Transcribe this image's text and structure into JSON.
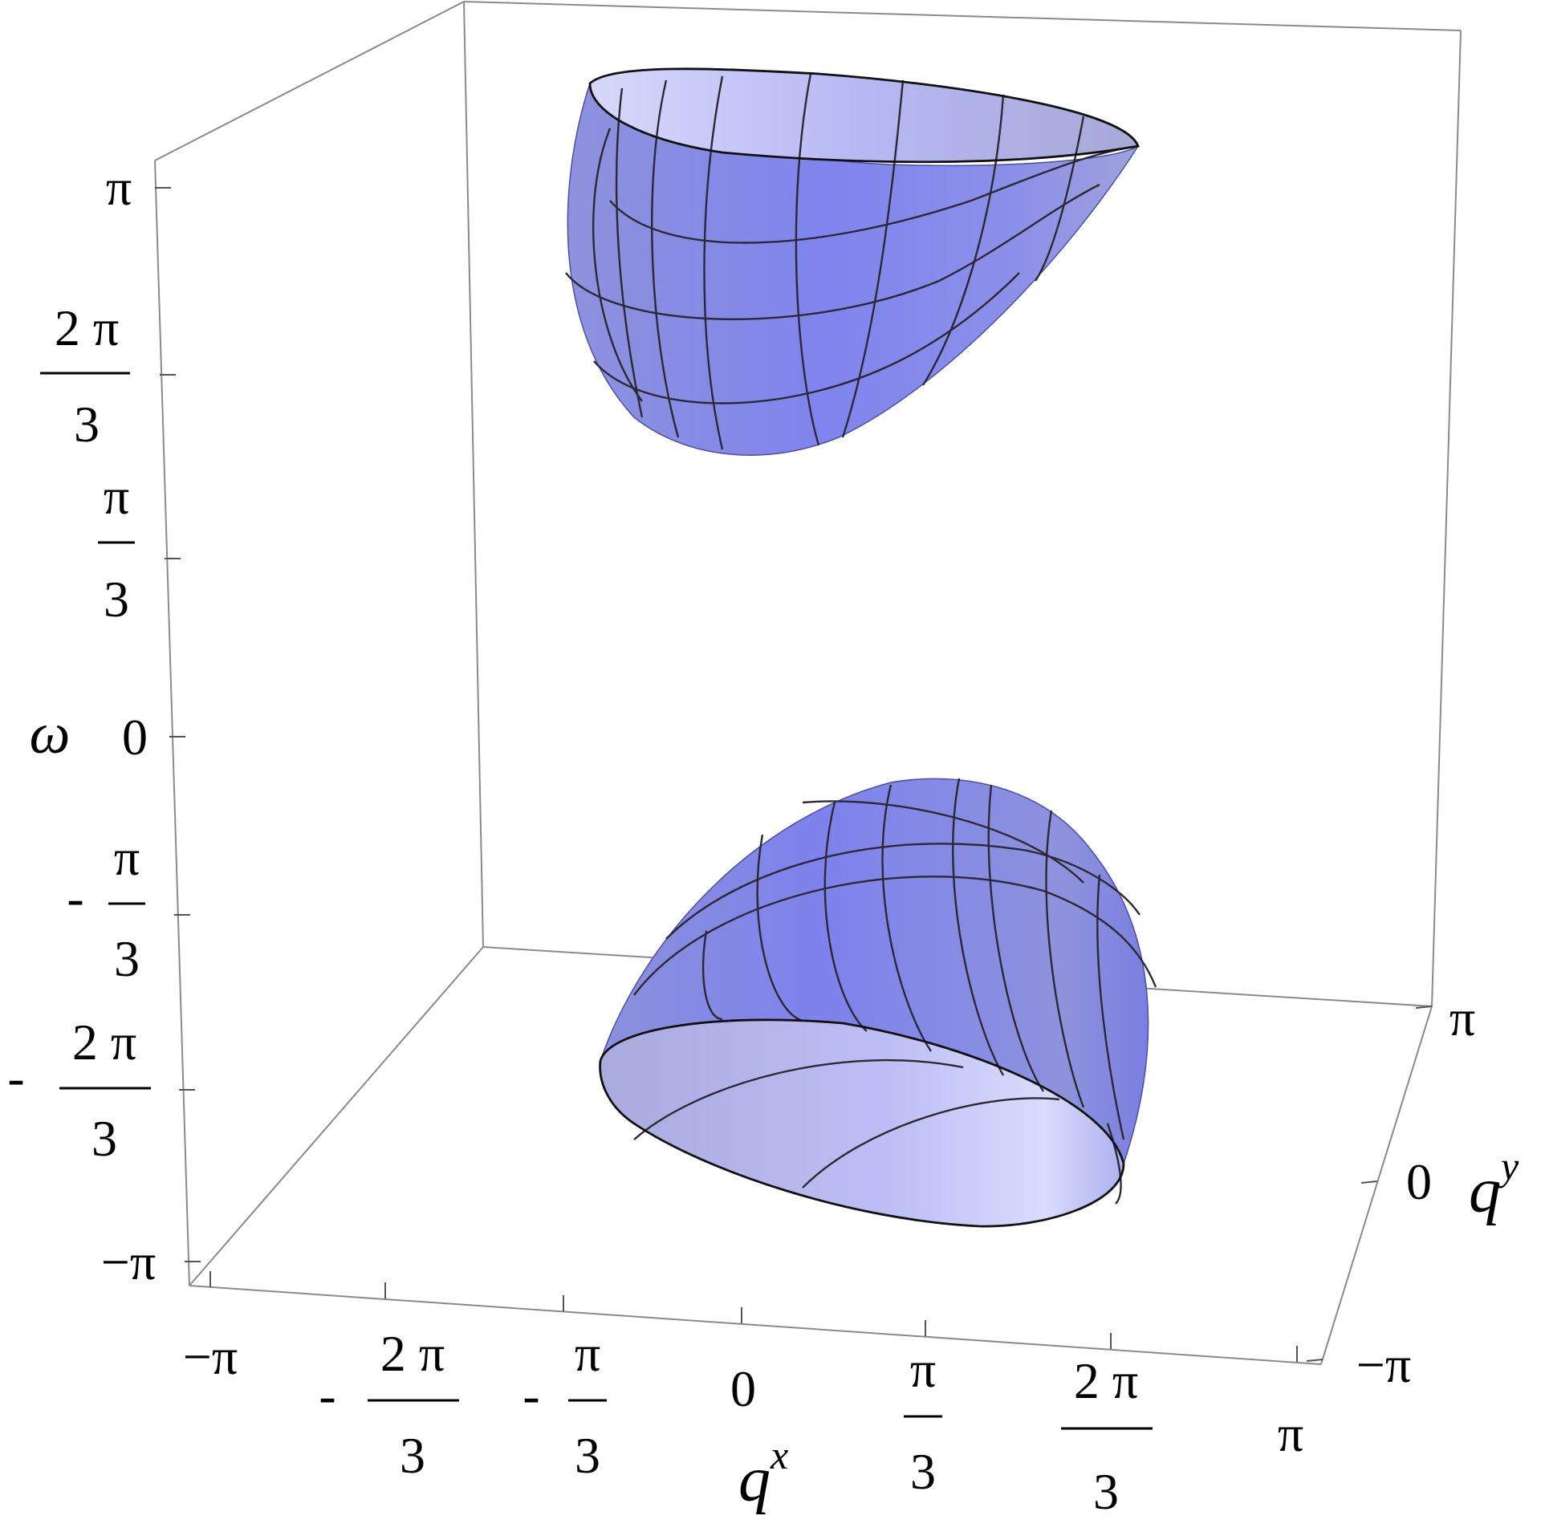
{
  "chart_data": {
    "type": "surface3d",
    "x_axis": {
      "label_base": "q",
      "label_sup": "x",
      "range": [
        "-π",
        "π"
      ],
      "ticks": [
        {
          "sign": "",
          "num": "−π",
          "den": ""
        },
        {
          "sign": "-",
          "num": "2 π",
          "den": "3"
        },
        {
          "sign": "-",
          "num": "π",
          "den": "3"
        },
        {
          "sign": "",
          "num": "0",
          "den": ""
        },
        {
          "sign": "",
          "num": "π",
          "den": "3"
        },
        {
          "sign": "",
          "num": "2 π",
          "den": "3"
        },
        {
          "sign": "",
          "num": "π",
          "den": ""
        }
      ]
    },
    "y_axis": {
      "label_base": "q",
      "label_sup": "y",
      "range": [
        "-π",
        "π"
      ],
      "ticks": [
        {
          "sign": "",
          "num": "−π",
          "den": ""
        },
        {
          "sign": "",
          "num": "0",
          "den": ""
        },
        {
          "sign": "",
          "num": "π",
          "den": ""
        }
      ]
    },
    "z_axis": {
      "label": "ω",
      "range": [
        "-π",
        "π"
      ],
      "ticks": [
        {
          "sign": "",
          "num": "π",
          "den": ""
        },
        {
          "sign": "",
          "num": "2 π",
          "den": "3"
        },
        {
          "sign": "",
          "num": "π",
          "den": "3"
        },
        {
          "sign": "",
          "num": "0",
          "den": ""
        },
        {
          "sign": "-",
          "num": "π",
          "den": "3"
        },
        {
          "sign": "-",
          "num": "2 π",
          "den": "3"
        },
        {
          "sign": "",
          "num": "−π",
          "den": ""
        }
      ]
    },
    "surfaces": [
      {
        "band": "upper",
        "shape": "bowl opening upward",
        "omega_min_approx": 1.0,
        "omega_max": 3.14159
      },
      {
        "band": "lower",
        "shape": "dome opening downward",
        "omega_max_approx": -1.0,
        "omega_min": -3.14159
      }
    ],
    "surface_color": "#7b7fe6",
    "mesh_color": "#2a2a35",
    "box": true,
    "grid": false,
    "legend": "none"
  }
}
